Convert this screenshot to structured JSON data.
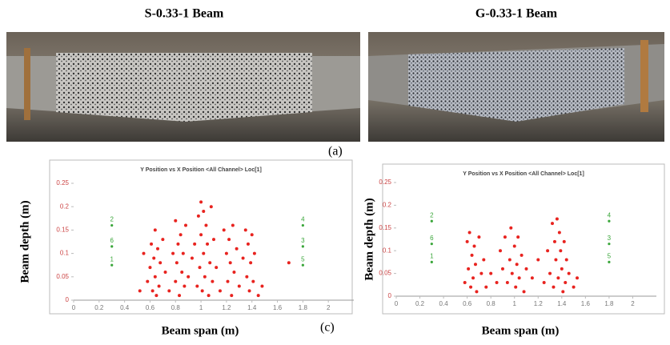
{
  "figure": {
    "panel_titles": [
      "S-0.33-1 Beam",
      "G-0.33-1 Beam"
    ],
    "panel_labels": [
      "(a)",
      "(c)"
    ]
  },
  "chart_data": [
    {
      "type": "scatter",
      "title": "Y Position vs X Position <All Channel> Loc[1]",
      "x_label": "Beam span (m)",
      "y_label": "Beam depth (m)",
      "xlim": [
        0,
        2.2
      ],
      "ylim": [
        0,
        0.25
      ],
      "xticks": [
        0,
        0.2,
        0.4,
        0.6,
        0.8,
        1,
        1.2,
        1.4,
        1.6,
        1.8,
        2
      ],
      "yticks": [
        0,
        0.05,
        0.1,
        0.15,
        0.2,
        0.25
      ],
      "series": [
        {
          "color": "#e8231f",
          "x": [
            0.52,
            0.55,
            0.58,
            0.6,
            0.61,
            0.62,
            0.63,
            0.64,
            0.64,
            0.65,
            0.66,
            0.67,
            0.68,
            0.7,
            0.72,
            0.75,
            0.78,
            0.8,
            0.8,
            0.81,
            0.82,
            0.83,
            0.84,
            0.85,
            0.86,
            0.87,
            0.88,
            0.9,
            0.93,
            0.95,
            0.97,
            0.98,
            0.99,
            1.0,
            1.0,
            1.01,
            1.02,
            1.02,
            1.03,
            1.04,
            1.05,
            1.06,
            1.07,
            1.08,
            1.09,
            1.1,
            1.12,
            1.15,
            1.18,
            1.2,
            1.21,
            1.22,
            1.23,
            1.24,
            1.25,
            1.26,
            1.28,
            1.3,
            1.33,
            1.35,
            1.36,
            1.37,
            1.38,
            1.39,
            1.4,
            1.41,
            1.42,
            1.45,
            1.48,
            1.69
          ],
          "values": [
            0.02,
            0.1,
            0.04,
            0.07,
            0.12,
            0.02,
            0.09,
            0.15,
            0.05,
            0.01,
            0.11,
            0.03,
            0.08,
            0.13,
            0.06,
            0.02,
            0.1,
            0.17,
            0.04,
            0.08,
            0.12,
            0.01,
            0.14,
            0.06,
            0.1,
            0.03,
            0.16,
            0.05,
            0.09,
            0.12,
            0.03,
            0.18,
            0.07,
            0.21,
            0.14,
            0.02,
            0.1,
            0.19,
            0.05,
            0.16,
            0.12,
            0.01,
            0.08,
            0.2,
            0.04,
            0.13,
            0.07,
            0.02,
            0.15,
            0.1,
            0.04,
            0.13,
            0.08,
            0.01,
            0.16,
            0.06,
            0.11,
            0.03,
            0.09,
            0.15,
            0.05,
            0.12,
            0.02,
            0.08,
            0.14,
            0.04,
            0.1,
            0.01,
            0.03,
            0.08
          ]
        },
        {
          "color": "#3aa63a",
          "x": [
            0.3,
            0.3,
            0.3,
            1.8,
            1.8,
            1.8
          ],
          "values": [
            0.16,
            0.115,
            0.075,
            0.16,
            0.115,
            0.075
          ],
          "point_labels": [
            "2",
            "6",
            "1",
            "4",
            "3",
            "5"
          ]
        }
      ]
    },
    {
      "type": "scatter",
      "title": "Y Position vs X Position <All Channel> Loc[1]",
      "x_label": "Beam span (m)",
      "y_label": "Beam depth (m)",
      "xlim": [
        0,
        2.2
      ],
      "ylim": [
        0,
        0.25
      ],
      "xticks": [
        0,
        0.2,
        0.4,
        0.6,
        0.8,
        1,
        1.2,
        1.4,
        1.6,
        1.8,
        2
      ],
      "yticks": [
        0,
        0.05,
        0.1,
        0.15,
        0.2,
        0.25
      ],
      "series": [
        {
          "color": "#e8231f",
          "x": [
            0.58,
            0.6,
            0.61,
            0.62,
            0.63,
            0.64,
            0.65,
            0.66,
            0.67,
            0.68,
            0.7,
            0.72,
            0.74,
            0.76,
            0.8,
            0.85,
            0.88,
            0.9,
            0.92,
            0.94,
            0.96,
            0.97,
            0.98,
            1.0,
            1.01,
            1.02,
            1.03,
            1.04,
            1.06,
            1.08,
            1.1,
            1.15,
            1.2,
            1.25,
            1.28,
            1.3,
            1.32,
            1.33,
            1.34,
            1.35,
            1.36,
            1.37,
            1.38,
            1.39,
            1.4,
            1.41,
            1.42,
            1.43,
            1.44,
            1.46,
            1.5,
            1.53
          ],
          "values": [
            0.03,
            0.12,
            0.06,
            0.14,
            0.02,
            0.09,
            0.04,
            0.11,
            0.07,
            0.01,
            0.13,
            0.05,
            0.08,
            0.02,
            0.05,
            0.03,
            0.1,
            0.06,
            0.13,
            0.03,
            0.08,
            0.15,
            0.05,
            0.11,
            0.02,
            0.07,
            0.13,
            0.04,
            0.09,
            0.01,
            0.06,
            0.04,
            0.08,
            0.03,
            0.1,
            0.05,
            0.16,
            0.02,
            0.12,
            0.08,
            0.17,
            0.04,
            0.14,
            0.1,
            0.06,
            0.01,
            0.12,
            0.03,
            0.08,
            0.05,
            0.02,
            0.04
          ]
        },
        {
          "color": "#3aa63a",
          "x": [
            0.3,
            0.3,
            0.3,
            1.8,
            1.8,
            1.8
          ],
          "values": [
            0.165,
            0.115,
            0.075,
            0.165,
            0.115,
            0.075
          ],
          "point_labels": [
            "2",
            "6",
            "1",
            "4",
            "3",
            "5"
          ]
        }
      ]
    }
  ]
}
